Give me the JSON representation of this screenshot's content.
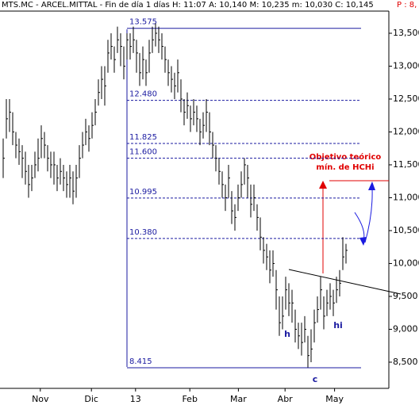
{
  "header": {
    "text": "MTS.MC - ARCEL.MITTAL - Fin de día 1 días  H: 11:07  A: 10,140  M: 10,235  m: 10,030  C: 10,145",
    "extra": "P : 8,"
  },
  "chart_data": {
    "type": "ohlc",
    "xlim": [
      -1,
      121.5
    ],
    "ylim": [
      8.102,
      13.837
    ],
    "xticks": [
      {
        "value": 11.7,
        "label": "Nov"
      },
      {
        "value": 27.8,
        "label": "Dic"
      },
      {
        "value": 41.7,
        "label": "13"
      },
      {
        "value": 58.8,
        "label": "Feb"
      },
      {
        "value": 74.1,
        "label": "Mar"
      },
      {
        "value": 88.8,
        "label": "Abr"
      },
      {
        "value": 104.4,
        "label": "May"
      }
    ],
    "yticks": [
      {
        "value": 8.5,
        "label": "8,500"
      },
      {
        "value": 9,
        "label": "9,000"
      },
      {
        "value": 9.5,
        "label": "9,500"
      },
      {
        "value": 10,
        "label": "10,000"
      },
      {
        "value": 10.5,
        "label": "10,500"
      },
      {
        "value": 11,
        "label": "11,000"
      },
      {
        "value": 11.5,
        "label": "11,500"
      },
      {
        "value": 12,
        "label": "12,000"
      },
      {
        "value": 12.5,
        "label": "12,500"
      },
      {
        "value": 13,
        "label": "13,000"
      },
      {
        "value": 13.5,
        "label": "13,500"
      }
    ],
    "color": "#000000",
    "close": [
      11.6,
      12.2,
      12.3,
      12.0,
      11.8,
      11.7,
      11.6,
      11.4,
      11.2,
      11.3,
      11.5,
      11.6,
      11.9,
      11.8,
      11.6,
      11.5,
      11.5,
      11.3,
      11.4,
      11.3,
      11.2,
      11.3,
      11.1,
      11.3,
      11.6,
      11.8,
      12.0,
      11.9,
      12.1,
      12.3,
      12.6,
      12.8,
      12.7,
      13.2,
      13.3,
      13.1,
      13.4,
      13.3,
      13.0,
      13.4,
      13.3,
      13.4,
      13.2,
      12.9,
      13.1,
      12.9,
      13.2,
      13.4,
      13.5,
      13.4,
      13.3,
      13.1,
      12.9,
      12.8,
      12.7,
      12.9,
      12.5,
      12.3,
      12.4,
      12.2,
      12.3,
      12.2,
      12.0,
      12.1,
      12.3,
      12.0,
      11.8,
      11.6,
      11.4,
      11.2,
      11.0,
      11.3,
      10.8,
      10.7,
      11.0,
      11.2,
      11.5,
      11.3,
      10.9,
      11.0,
      10.7,
      10.4,
      10.2,
      10.1,
      9.9,
      10.0,
      9.6,
      9.1,
      9.2,
      9.6,
      9.4,
      9.4,
      9.0,
      8.9,
      8.8,
      9.0,
      8.6,
      8.7,
      9.1,
      9.3,
      9.6,
      9.2,
      9.4,
      9.5,
      9.4,
      9.6,
      9.7,
      10.1,
      10.2
    ],
    "high": [
      11.9,
      12.5,
      12.5,
      12.3,
      12.0,
      11.9,
      11.8,
      11.7,
      11.5,
      11.5,
      11.7,
      11.9,
      12.1,
      12.0,
      11.8,
      11.7,
      11.7,
      11.5,
      11.6,
      11.5,
      11.4,
      11.5,
      11.4,
      11.5,
      11.8,
      12.0,
      12.2,
      12.1,
      12.3,
      12.5,
      12.8,
      13.0,
      13.0,
      13.4,
      13.5,
      13.3,
      13.6,
      13.5,
      13.3,
      13.5,
      13.5,
      13.6,
      13.4,
      13.2,
      13.3,
      13.1,
      13.4,
      13.6,
      13.65,
      13.6,
      13.5,
      13.3,
      13.1,
      13.0,
      12.9,
      13.1,
      12.8,
      12.5,
      12.6,
      12.4,
      12.5,
      12.4,
      12.2,
      12.3,
      12.5,
      12.3,
      12.0,
      11.8,
      11.6,
      11.4,
      11.2,
      11.5,
      11.1,
      10.9,
      11.2,
      11.4,
      11.6,
      11.5,
      11.2,
      11.2,
      10.9,
      10.7,
      10.4,
      10.3,
      10.2,
      10.2,
      9.9,
      9.5,
      9.5,
      9.8,
      9.7,
      9.6,
      9.3,
      9.1,
      9.1,
      9.2,
      8.9,
      9.0,
      9.3,
      9.5,
      9.8,
      9.5,
      9.6,
      9.7,
      9.6,
      9.8,
      9.9,
      10.4,
      10.3
    ],
    "low": [
      11.3,
      11.9,
      12.0,
      11.8,
      11.6,
      11.5,
      11.3,
      11.2,
      11.0,
      11.1,
      11.3,
      11.4,
      11.6,
      11.6,
      11.4,
      11.3,
      11.2,
      11.1,
      11.2,
      11.1,
      11.0,
      11.0,
      10.9,
      11.0,
      11.3,
      11.6,
      11.8,
      11.7,
      11.9,
      12.1,
      12.4,
      12.5,
      12.4,
      12.9,
      13.1,
      12.9,
      13.2,
      13.0,
      12.8,
      13.1,
      13.1,
      13.2,
      12.9,
      12.7,
      12.8,
      12.7,
      12.9,
      13.2,
      13.3,
      13.2,
      13.1,
      12.9,
      12.7,
      12.6,
      12.5,
      12.6,
      12.3,
      12.1,
      12.2,
      12.0,
      12.1,
      12.0,
      11.8,
      11.9,
      12.0,
      11.8,
      11.6,
      11.4,
      11.2,
      11.0,
      10.8,
      11.0,
      10.6,
      10.5,
      10.8,
      11.0,
      11.2,
      11.0,
      10.7,
      10.8,
      10.5,
      10.2,
      10.0,
      9.9,
      9.7,
      9.8,
      9.3,
      8.9,
      9.0,
      9.3,
      9.2,
      9.1,
      8.8,
      8.7,
      8.6,
      8.8,
      8.42,
      8.5,
      8.8,
      9.1,
      9.3,
      9.0,
      9.2,
      9.3,
      9.2,
      9.4,
      9.5,
      9.9,
      10.0
    ],
    "levels": [
      {
        "value": 13.575,
        "label": "13.575"
      },
      {
        "value": 12.48,
        "label": "12.480"
      },
      {
        "value": 11.825,
        "label": "11.825"
      },
      {
        "value": 11.6,
        "label": "11.600"
      },
      {
        "value": 10.995,
        "label": "10.995"
      },
      {
        "value": 10.38,
        "label": "10.380"
      },
      {
        "value": 8.415,
        "label": "8.415"
      }
    ],
    "annotations": {
      "target": "Objetivo teórico",
      "target2": "mín. de HCHi",
      "h": "h",
      "hi": "hi",
      "c": "c"
    }
  }
}
